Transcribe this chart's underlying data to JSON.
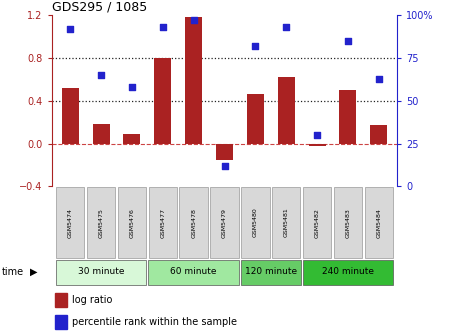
{
  "title": "GDS295 / 1085",
  "samples": [
    "GSM5474",
    "GSM5475",
    "GSM5476",
    "GSM5477",
    "GSM5478",
    "GSM5479",
    "GSM5480",
    "GSM5481",
    "GSM5482",
    "GSM5483",
    "GSM5484"
  ],
  "log_ratio": [
    0.52,
    0.18,
    0.09,
    0.8,
    1.18,
    -0.15,
    0.46,
    0.62,
    -0.02,
    0.5,
    0.17
  ],
  "percentile": [
    92,
    65,
    58,
    93,
    97,
    12,
    82,
    93,
    30,
    85,
    63
  ],
  "bar_color": "#aa2222",
  "dot_color": "#2222cc",
  "ylim_left": [
    -0.4,
    1.2
  ],
  "ylim_right": [
    0,
    100
  ],
  "yticks_left": [
    -0.4,
    0.0,
    0.4,
    0.8,
    1.2
  ],
  "yticks_right": [
    0,
    25,
    50,
    75,
    100
  ],
  "ytick_labels_right": [
    "0",
    "25",
    "50",
    "75",
    "100%"
  ],
  "hlines": [
    0.4,
    0.8
  ],
  "zero_line_color": "#cc4444",
  "grid_color": "#222222",
  "groups": [
    {
      "label": "30 minute",
      "start": 0,
      "end": 3,
      "color": "#d8f8d8"
    },
    {
      "label": "60 minute",
      "start": 3,
      "end": 6,
      "color": "#a0e8a0"
    },
    {
      "label": "120 minute",
      "start": 6,
      "end": 8,
      "color": "#66cc66"
    },
    {
      "label": "240 minute",
      "start": 8,
      "end": 11,
      "color": "#33bb33"
    }
  ],
  "legend_bar_label": "log ratio",
  "legend_dot_label": "percentile rank within the sample",
  "left_tick_color": "#aa2222",
  "right_tick_color": "#2222cc",
  "sample_box_color": "#d8d8d8",
  "sample_box_edge": "#999999"
}
